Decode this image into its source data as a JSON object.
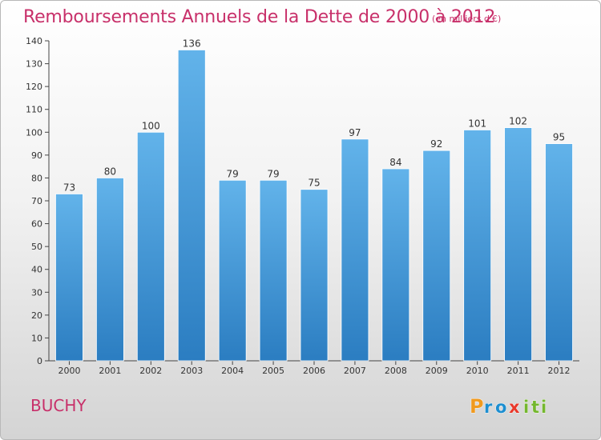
{
  "title": "Remboursements Annuels de la Dette de 2000 à 2012",
  "subtitle": "(en milliers d'€)",
  "commune": "BUCHY",
  "brand": {
    "name": "Proxiti",
    "letters": [
      "P",
      "r",
      "o",
      "x",
      "i",
      "t",
      "i"
    ],
    "colors": [
      "#f09a1f",
      "#1d8ed0",
      "#1d8ed0",
      "#e8392b",
      "#74b72e",
      "#74b72e",
      "#74b72e"
    ]
  },
  "colors": {
    "accent": "#c8306a",
    "bar_top": "#62b3ea",
    "bar_bottom": "#2b7dc1"
  },
  "chart_data": {
    "type": "bar",
    "title": "Remboursements Annuels de la Dette de 2000 à 2012",
    "subtitle": "(en milliers d'€)",
    "categories": [
      "2000",
      "2001",
      "2002",
      "2003",
      "2004",
      "2005",
      "2006",
      "2007",
      "2008",
      "2009",
      "2010",
      "2011",
      "2012"
    ],
    "values": [
      73,
      80,
      100,
      136,
      79,
      79,
      75,
      97,
      84,
      92,
      101,
      102,
      95
    ],
    "value_labels": [
      "73",
      "80",
      "100",
      "136",
      "79",
      "79",
      "75",
      "97",
      "84",
      "92",
      "101",
      "102",
      "95"
    ],
    "ylim": [
      0,
      140
    ],
    "yticks": [
      0,
      10,
      20,
      30,
      40,
      50,
      60,
      70,
      80,
      90,
      100,
      110,
      120,
      130,
      140
    ],
    "ytick_labels": [
      "0",
      "10",
      "20",
      "30",
      "40",
      "50",
      "60",
      "70",
      "80",
      "90",
      "100",
      "110",
      "120",
      "130",
      "140"
    ],
    "xlabel": "",
    "ylabel": "",
    "grid": false,
    "legend": "none"
  }
}
